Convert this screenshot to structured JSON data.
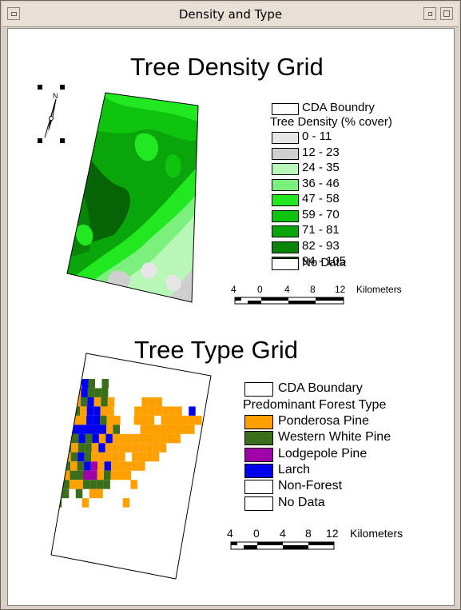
{
  "window": {
    "title": "Density and Type"
  },
  "density_map": {
    "title": "Tree Density Grid",
    "boundary_label": "CDA Boundry",
    "legend_title": "Tree Density (% cover)",
    "classes": [
      {
        "label": "0 - 11",
        "color": "#e6e6e6"
      },
      {
        "label": "12 - 23",
        "color": "#cfcfcf"
      },
      {
        "label": "24 - 35",
        "color": "#b9f7b9"
      },
      {
        "label": "36 - 46",
        "color": "#7cf07c"
      },
      {
        "label": "47 - 58",
        "color": "#22e822"
      },
      {
        "label": "59 - 70",
        "color": "#0ec40e"
      },
      {
        "label": "71 - 81",
        "color": "#0aa50a"
      },
      {
        "label": "82 - 93",
        "color": "#088408"
      },
      {
        "label": "94 - 105",
        "color": "#066406"
      }
    ],
    "no_data_label": "No Data",
    "scale": {
      "ticks": [
        "4",
        "0",
        "4",
        "8",
        "12"
      ],
      "unit": "Kilometers"
    },
    "north_label": "N"
  },
  "type_map": {
    "title": "Tree Type Grid",
    "boundary_label": "CDA Boundary",
    "legend_title": "Predominant Forest Type",
    "classes": [
      {
        "label": "Ponderosa Pine",
        "color": "#ff9f00"
      },
      {
        "label": "Western White Pine",
        "color": "#3b6e1a"
      },
      {
        "label": "Lodgepole Pine",
        "color": "#a000a8"
      },
      {
        "label": "Larch",
        "color": "#0000f0"
      },
      {
        "label": "Non-Forest",
        "color": "#ffffff"
      },
      {
        "label": "No Data",
        "color": "#ffffff"
      }
    ],
    "scale": {
      "ticks": [
        "4",
        "0",
        "4",
        "8",
        "12"
      ],
      "unit": "Kilometers"
    }
  }
}
